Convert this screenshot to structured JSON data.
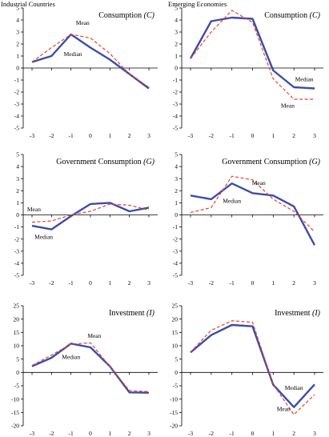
{
  "column_titles": [
    "Industrial Countries",
    "Emerging Economies"
  ],
  "colors": {
    "median": "#3b4da8",
    "mean": "#e8402a",
    "axis": "#000000"
  },
  "chart_data": [
    {
      "type": "line",
      "panel": "ind-consumption",
      "title": "Consumption (C)",
      "x": [
        -3,
        -2,
        -1,
        0,
        1,
        2,
        3
      ],
      "ylim": [
        -5,
        5
      ],
      "yticks": [
        -5,
        -4,
        -3,
        -2,
        -1,
        0,
        1,
        2,
        3,
        4,
        5
      ],
      "series": [
        {
          "name": "Median",
          "values": [
            0.5,
            1.0,
            2.8,
            1.7,
            0.7,
            -0.5,
            -1.7
          ]
        },
        {
          "name": "Mean",
          "values": [
            0.5,
            1.7,
            2.8,
            2.5,
            1.2,
            -0.5,
            -1.6
          ]
        }
      ],
      "labels": [
        {
          "text": "Mean",
          "x": -0.4,
          "y": 3.6
        },
        {
          "text": "Median",
          "x": -0.9,
          "y": 1.0
        }
      ]
    },
    {
      "type": "line",
      "panel": "em-consumption",
      "title": "Consumption (C)",
      "x": [
        -3,
        -2,
        -1,
        0,
        1,
        2,
        3
      ],
      "ylim": [
        -5,
        5
      ],
      "yticks": [
        -5,
        -4,
        -3,
        -2,
        -1,
        0,
        1,
        2,
        3,
        4,
        5
      ],
      "series": [
        {
          "name": "Median",
          "values": [
            0.8,
            3.9,
            4.2,
            4.1,
            -0.2,
            -1.6,
            -1.7
          ]
        },
        {
          "name": "Mean",
          "values": [
            0.8,
            3.0,
            4.8,
            3.8,
            -0.9,
            -2.6,
            -2.6
          ]
        }
      ],
      "labels": [
        {
          "text": "Median",
          "x": 2.5,
          "y": -1.1
        },
        {
          "text": "Mean",
          "x": 1.7,
          "y": -3.3
        }
      ]
    },
    {
      "type": "line",
      "panel": "ind-gov",
      "title": "Government Consumption (G)",
      "x": [
        -3,
        -2,
        -1,
        0,
        1,
        2,
        3
      ],
      "ylim": [
        -5,
        5
      ],
      "yticks": [
        -5,
        -4,
        -3,
        -2,
        -1,
        0,
        1,
        2,
        3,
        4,
        5
      ],
      "series": [
        {
          "name": "Median",
          "values": [
            -0.9,
            -1.2,
            -0.1,
            0.9,
            1.0,
            0.3,
            0.6
          ]
        },
        {
          "name": "Mean",
          "values": [
            -0.6,
            -0.5,
            0.0,
            0.3,
            0.9,
            0.8,
            0.4
          ]
        }
      ],
      "labels": [
        {
          "text": "Mean",
          "x": -2.9,
          "y": 0.3
        },
        {
          "text": "Median",
          "x": -2.4,
          "y": -2.0
        }
      ]
    },
    {
      "type": "line",
      "panel": "em-gov",
      "title": "Government Consumption (G)",
      "x": [
        -3,
        -2,
        -1,
        0,
        1,
        2,
        3
      ],
      "ylim": [
        -5,
        5
      ],
      "yticks": [
        -5,
        -4,
        -3,
        -2,
        -1,
        0,
        1,
        2,
        3,
        4,
        5
      ],
      "series": [
        {
          "name": "Median",
          "values": [
            1.6,
            1.3,
            2.6,
            1.8,
            1.6,
            0.7,
            -2.5
          ]
        },
        {
          "name": "Mean",
          "values": [
            0.2,
            0.6,
            3.2,
            2.9,
            1.3,
            0.3,
            -1.4
          ]
        }
      ],
      "labels": [
        {
          "text": "Mean",
          "x": 0.3,
          "y": 2.5
        },
        {
          "text": "Median",
          "x": -1.0,
          "y": 1.0
        }
      ]
    },
    {
      "type": "line",
      "panel": "ind-inv",
      "title": "Investment (I)",
      "x": [
        -3,
        -2,
        -1,
        0,
        1,
        2,
        3
      ],
      "ylim": [
        -20,
        25
      ],
      "yticks": [
        -20,
        -15,
        -10,
        -5,
        0,
        5,
        10,
        15,
        20,
        25
      ],
      "series": [
        {
          "name": "Median",
          "values": [
            2.3,
            5.5,
            10.8,
            9.4,
            2.3,
            -7.5,
            -7.6
          ]
        },
        {
          "name": "Mean",
          "values": [
            2.6,
            6.5,
            10.6,
            11.1,
            2.2,
            -6.8,
            -7.2
          ]
        }
      ],
      "labels": [
        {
          "text": "Mean",
          "x": 0.2,
          "y": 13.0
        },
        {
          "text": "Median",
          "x": -1.0,
          "y": 5.0
        }
      ]
    },
    {
      "type": "line",
      "panel": "em-inv",
      "title": "Investment (I)",
      "x": [
        -3,
        -2,
        -1,
        0,
        1,
        2,
        3
      ],
      "ylim": [
        -20,
        25
      ],
      "yticks": [
        -20,
        -15,
        -10,
        -5,
        0,
        5,
        10,
        15,
        20,
        25
      ],
      "series": [
        {
          "name": "Median",
          "values": [
            7.5,
            14.0,
            17.8,
            17.3,
            -4.6,
            -13.0,
            -4.5
          ]
        },
        {
          "name": "Mean",
          "values": [
            7.6,
            15.8,
            19.4,
            18.8,
            -4.5,
            -15.8,
            -8.3
          ]
        }
      ],
      "labels": [
        {
          "text": "Median",
          "x": 2.0,
          "y": -6.5
        },
        {
          "text": "Mean",
          "x": 1.5,
          "y": -14.5
        }
      ]
    }
  ]
}
